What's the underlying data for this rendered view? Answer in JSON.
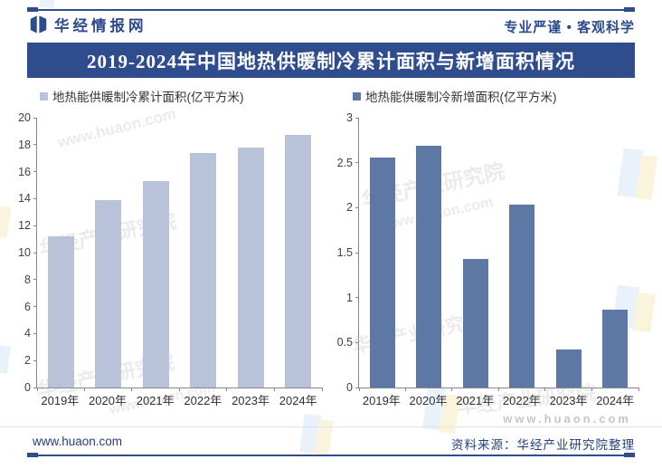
{
  "header": {
    "brand": "华经情报网",
    "tagline": "专业严谨 • 客观科学"
  },
  "title": "2019-2024年中国地热供暖制冷累计面积与新增面积情况",
  "footer": {
    "site": "www.huaon.com",
    "source": "资料来源：华经产业研究院整理"
  },
  "watermark": {
    "url": "www.huaon.com",
    "org": "华经产业研究院"
  },
  "colors": {
    "navy": "#2f4d8c",
    "light_bar": "#b8c2d8",
    "dark_bar": "#5d78a5",
    "axis": "#888888",
    "pale_blue": "#e9f1fb",
    "pale_yellow": "#fbf4dd"
  },
  "chart_data": [
    {
      "type": "bar",
      "legend": "地热能供暖制冷累计面积(亿平方米)",
      "categories": [
        "2019年",
        "2020年",
        "2021年",
        "2022年",
        "2023年",
        "2024年"
      ],
      "values": [
        11.2,
        13.9,
        15.3,
        17.4,
        17.8,
        18.7
      ],
      "ylim": [
        0,
        20
      ],
      "ytick_labels": [
        "0",
        "2",
        "4",
        "6",
        "8",
        "10",
        "12",
        "14",
        "16",
        "18",
        "20"
      ],
      "bar_color": "#b8c2d8",
      "legend_position": "top",
      "grid": false
    },
    {
      "type": "bar",
      "legend": "地热能供暖制冷新增面积(亿平方米)",
      "categories": [
        "2019年",
        "2020年",
        "2021年",
        "2022年",
        "2023年",
        "2024年"
      ],
      "values": [
        2.56,
        2.69,
        1.43,
        2.03,
        0.42,
        0.87
      ],
      "ylim": [
        0,
        3
      ],
      "ytick_labels": [
        "0",
        "0.5",
        "1",
        "1.5",
        "2",
        "2.5",
        "3"
      ],
      "bar_color": "#5d78a5",
      "legend_position": "top",
      "grid": false
    }
  ]
}
